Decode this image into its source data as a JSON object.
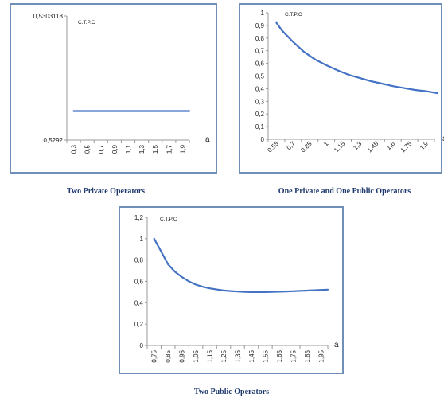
{
  "colors": {
    "line": "#4472c4",
    "frame": "#6f8fb8",
    "caption": "#1f3a6e"
  },
  "chart_data": [
    {
      "type": "line",
      "title": "C.T.P.C",
      "caption": "Two Private Operators",
      "xlabel": "a",
      "x_ticks": [
        "0,3",
        "0,5",
        "0,7",
        "0,9",
        "1,1",
        "1,3",
        "1,5",
        "1,7",
        "1,9"
      ],
      "y_ticks": [
        "0,5292",
        "0,5303118"
      ],
      "ylim": [
        0.5292,
        0.5303118
      ],
      "grid": false,
      "series": [
        {
          "x": [
            0.3,
            2.0
          ],
          "y": [
            0.52946,
            0.52946
          ]
        }
      ]
    },
    {
      "type": "line",
      "title": "C.T.P.C",
      "caption": "One Private and One Public Operators",
      "xlabel": "a",
      "x_ticks": [
        "0,55",
        "0,7",
        "0,85",
        "1",
        "1,15",
        "1,3",
        "1,45",
        "1,6",
        "1,75",
        "1,9"
      ],
      "y_ticks": [
        "0",
        "0,1",
        "0,2",
        "0,3",
        "0,4",
        "0,5",
        "0,6",
        "0,7",
        "0,8",
        "0,9",
        "1"
      ],
      "ylim": [
        0,
        1
      ],
      "grid": false,
      "series": [
        {
          "x": [
            0.55,
            0.6,
            0.7,
            0.8,
            0.9,
            1.0,
            1.1,
            1.2,
            1.3,
            1.4,
            1.5,
            1.6,
            1.7,
            1.8,
            1.9,
            2.0
          ],
          "y": [
            0.92,
            0.86,
            0.77,
            0.69,
            0.63,
            0.585,
            0.545,
            0.51,
            0.485,
            0.46,
            0.44,
            0.42,
            0.405,
            0.39,
            0.38,
            0.365
          ]
        }
      ]
    },
    {
      "type": "line",
      "title": "C.T.P.C",
      "caption": "Two Public Operators",
      "xlabel": "a",
      "x_ticks": [
        "0,75",
        "0,85",
        "0,95",
        "1,05",
        "1,15",
        "1,25",
        "1,35",
        "1,45",
        "1,55",
        "1,65",
        "1,75",
        "1,85",
        "1,95"
      ],
      "y_ticks": [
        "0",
        "0,2",
        "0,4",
        "0,6",
        "0,8",
        "1",
        "1,2"
      ],
      "ylim": [
        0,
        1.2
      ],
      "grid": false,
      "series": [
        {
          "x": [
            0.75,
            0.8,
            0.85,
            0.9,
            0.95,
            1.0,
            1.05,
            1.1,
            1.15,
            1.2,
            1.25,
            1.3,
            1.35,
            1.4,
            1.45,
            1.5,
            1.55,
            1.6,
            1.65,
            1.7,
            1.75,
            1.8,
            1.85,
            1.9,
            1.95,
            2.0
          ],
          "y": [
            1.0,
            0.88,
            0.76,
            0.69,
            0.64,
            0.6,
            0.57,
            0.55,
            0.535,
            0.525,
            0.515,
            0.51,
            0.505,
            0.502,
            0.5,
            0.5,
            0.5,
            0.502,
            0.504,
            0.506,
            0.508,
            0.511,
            0.514,
            0.517,
            0.52,
            0.523
          ]
        }
      ]
    }
  ]
}
